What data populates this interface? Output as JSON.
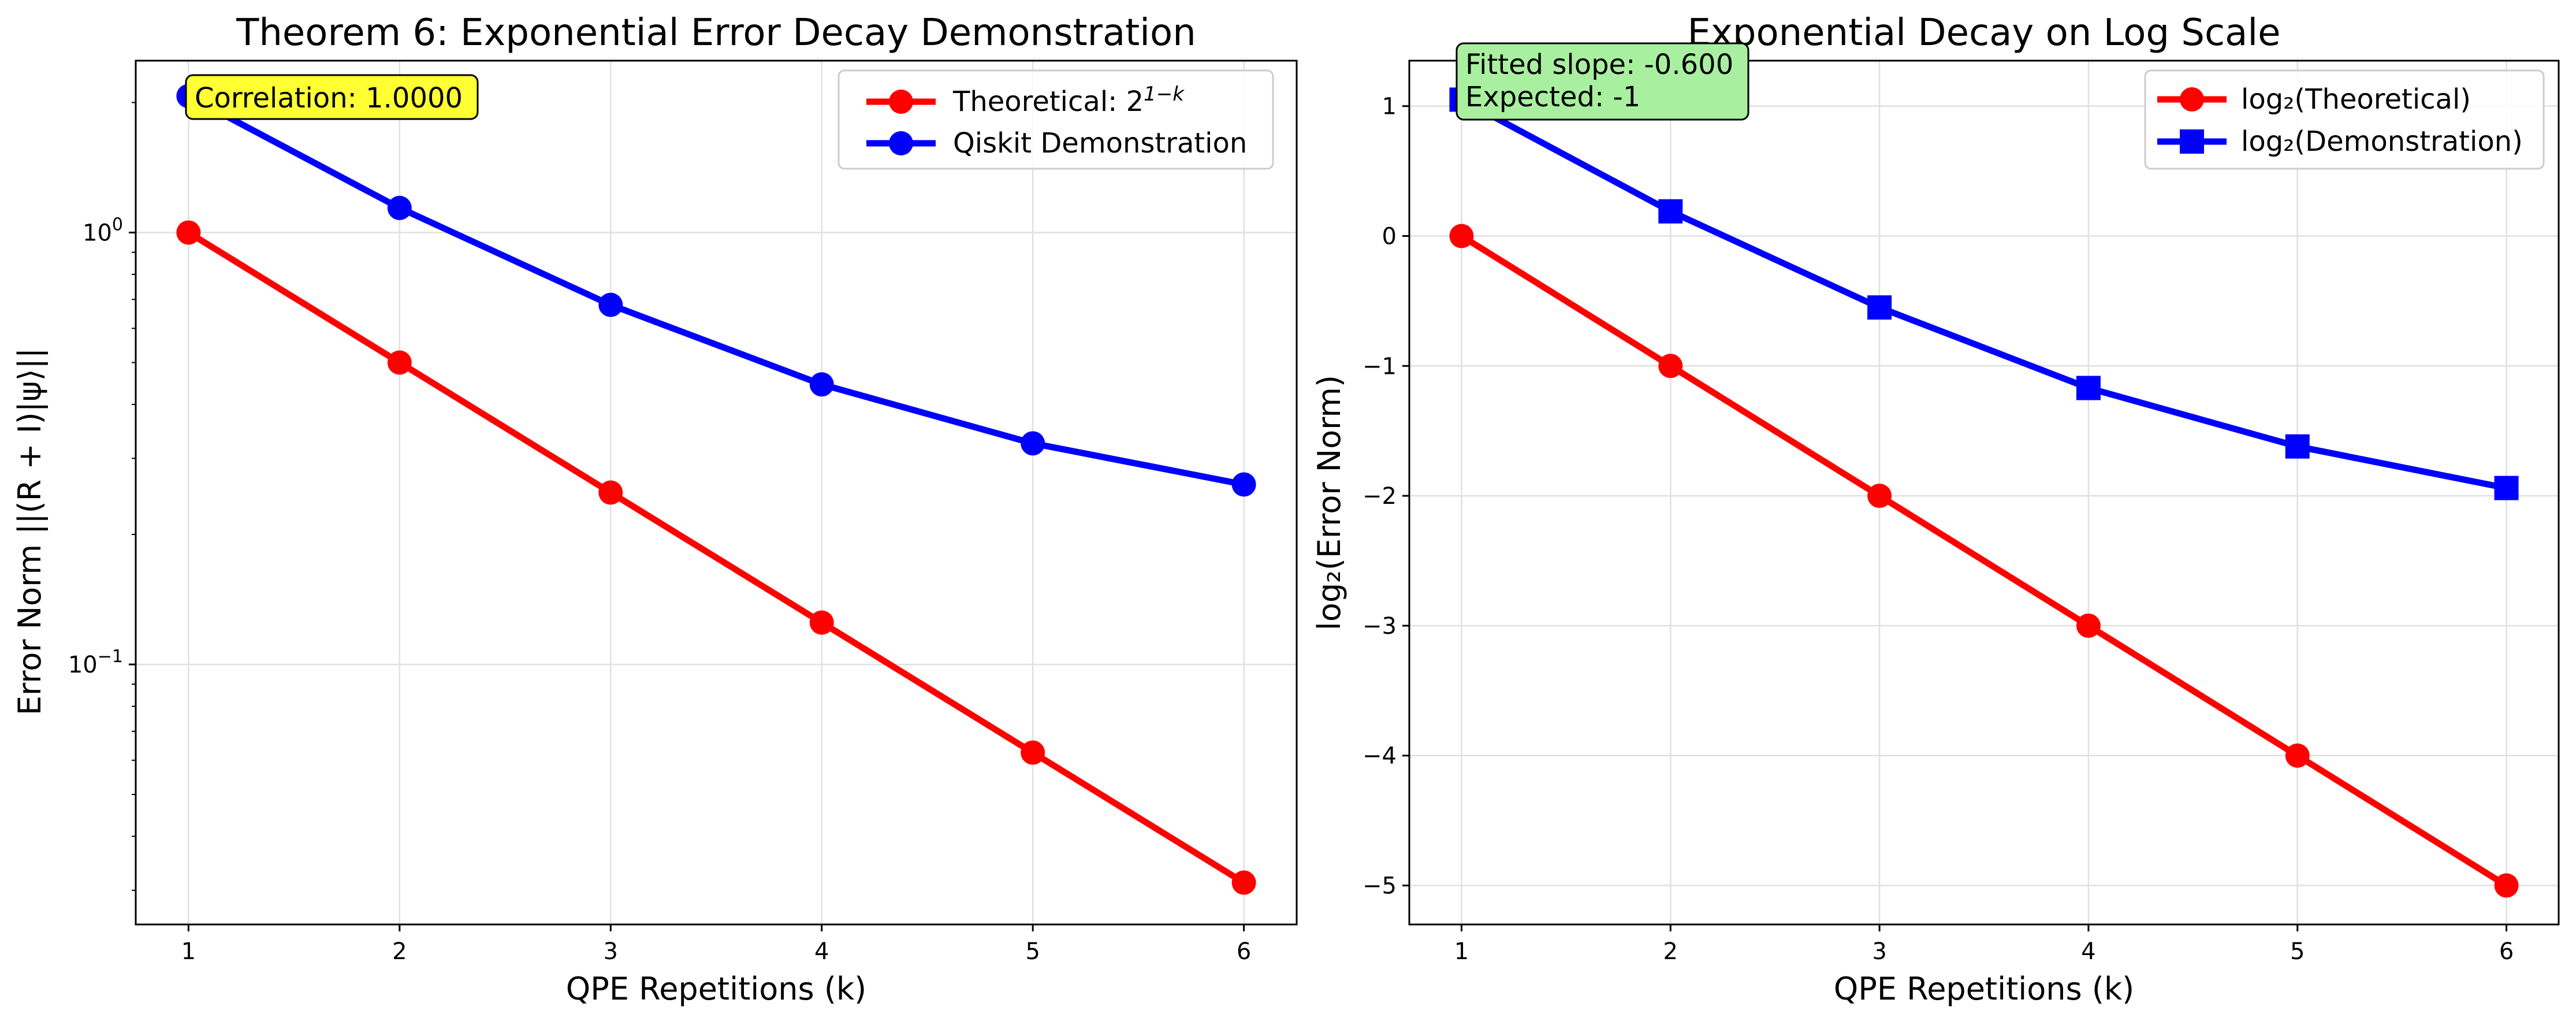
{
  "chart_data": [
    {
      "type": "line",
      "title": "Theorem 6: Exponential Error Decay Demonstration",
      "xlabel": "QPE Repetitions (k)",
      "ylabel": "Error Norm ||(R + I)|ψ⟩||",
      "yscale": "log",
      "grid": true,
      "legend_position": "top-right",
      "x": [
        1,
        2,
        3,
        4,
        5,
        6
      ],
      "xticks": [
        "1",
        "2",
        "3",
        "4",
        "5",
        "6"
      ],
      "xlim": [
        0.75,
        6.25
      ],
      "ylim": [
        0.025,
        2.5
      ],
      "yticks": [
        {
          "value": 1,
          "base": "10",
          "exp": "0"
        },
        {
          "value": 0.1,
          "base": "10",
          "exp": "−1"
        }
      ],
      "annotation": {
        "text": "Correlation: 1.0000",
        "color": "#ffff33"
      },
      "series": [
        {
          "name_base": "Theoretical: 2",
          "name_sup": "1−k",
          "color": "#ff0000",
          "marker": "circle",
          "values": [
            1.0,
            0.5,
            0.25,
            0.125,
            0.0625,
            0.03125
          ]
        },
        {
          "name": "Qiskit Demonstration",
          "color": "#0000ff",
          "marker": "circle",
          "values": [
            2.07,
            1.14,
            0.68,
            0.445,
            0.325,
            0.261
          ]
        }
      ]
    },
    {
      "type": "line",
      "title": "Exponential Decay on Log Scale",
      "xlabel": "QPE Repetitions (k)",
      "ylabel": "log₂(Error Norm)",
      "grid": true,
      "legend_position": "top-right",
      "x": [
        1,
        2,
        3,
        4,
        5,
        6
      ],
      "xticks": [
        "1",
        "2",
        "3",
        "4",
        "5",
        "6"
      ],
      "xlim": [
        0.75,
        6.25
      ],
      "ylim": [
        -5.3,
        1.35
      ],
      "yticks": [
        {
          "value": 1,
          "label": "1"
        },
        {
          "value": 0,
          "label": "0"
        },
        {
          "value": -1,
          "label": "−1"
        },
        {
          "value": -2,
          "label": "−2"
        },
        {
          "value": -3,
          "label": "−3"
        },
        {
          "value": -4,
          "label": "−4"
        },
        {
          "value": -5,
          "label": "−5"
        }
      ],
      "annotation": {
        "lines": [
          "Fitted slope: -0.600",
          "Expected: -1"
        ],
        "color": "#a8f0a0"
      },
      "series": [
        {
          "name": "log₂(Theoretical)",
          "color": "#ff0000",
          "marker": "circle",
          "values": [
            0,
            -1,
            -2,
            -3,
            -4,
            -5
          ]
        },
        {
          "name": "log₂(Demonstration)",
          "color": "#0000ff",
          "marker": "square",
          "values": [
            1.05,
            0.19,
            -0.55,
            -1.17,
            -1.62,
            -1.94
          ]
        }
      ]
    }
  ]
}
